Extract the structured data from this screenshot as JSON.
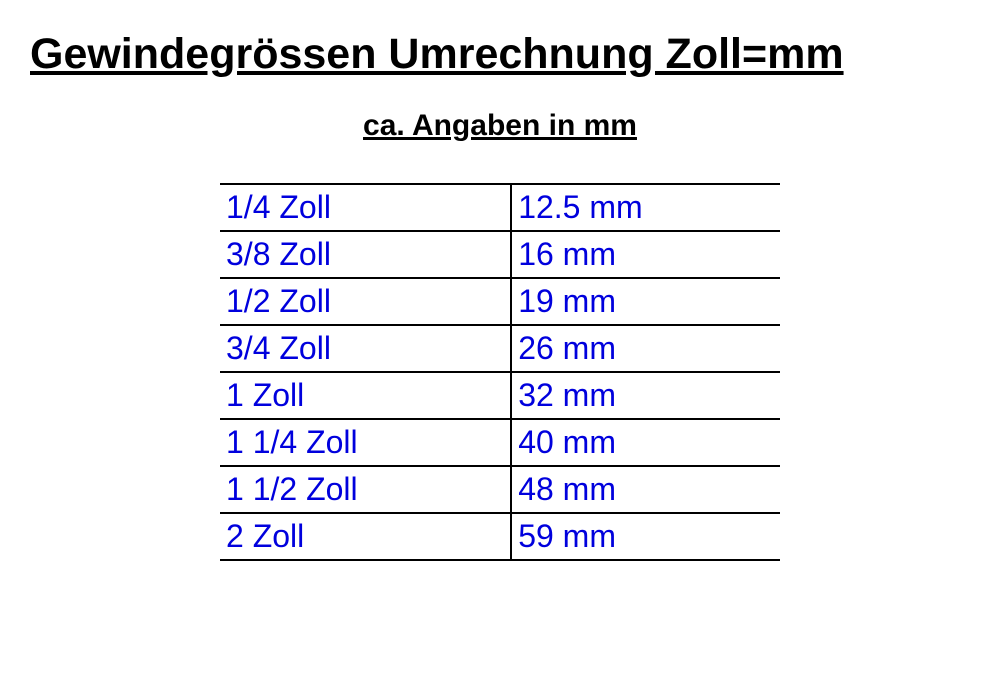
{
  "title": "Gewindegrössen Umrechnung Zoll=mm",
  "subtitle": "ca. Angaben in mm",
  "table": {
    "rows": [
      {
        "zoll": "1/4 Zoll",
        "mm": "12.5 mm"
      },
      {
        "zoll": "3/8 Zoll",
        "mm": "16 mm"
      },
      {
        "zoll": "1/2 Zoll",
        "mm": "19 mm"
      },
      {
        "zoll": "3/4 Zoll",
        "mm": "26 mm"
      },
      {
        "zoll": "1 Zoll",
        "mm": "32 mm"
      },
      {
        "zoll": "1 1/4 Zoll",
        "mm": "40 mm"
      },
      {
        "zoll": "1 1/2 Zoll",
        "mm": "48 mm"
      },
      {
        "zoll": "2 Zoll",
        "mm": "59 mm"
      }
    ]
  },
  "styling": {
    "title_fontsize": 43,
    "subtitle_fontsize": 30,
    "cell_fontsize": 32,
    "text_color_headings": "#000000",
    "text_color_data": "#0000dd",
    "border_color": "#000000",
    "border_width": 2,
    "background_color": "#ffffff",
    "font_family": "Arial"
  }
}
